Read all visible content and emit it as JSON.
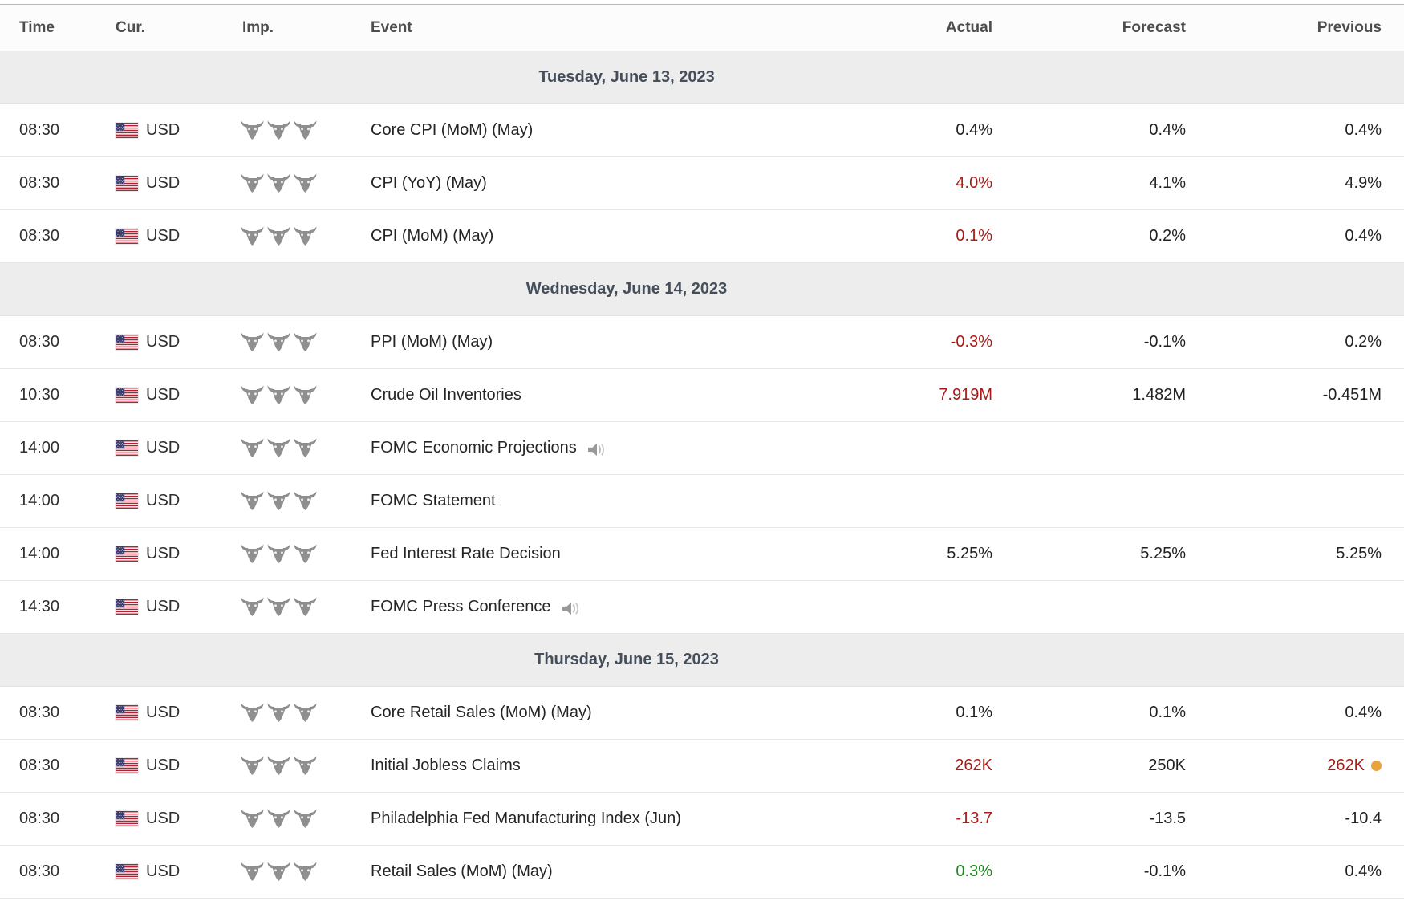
{
  "table": {
    "columns": [
      {
        "key": "time",
        "label": "Time"
      },
      {
        "key": "currency",
        "label": "Cur."
      },
      {
        "key": "importance",
        "label": "Imp."
      },
      {
        "key": "event",
        "label": "Event"
      },
      {
        "key": "actual",
        "label": "Actual"
      },
      {
        "key": "forecast",
        "label": "Forecast"
      },
      {
        "key": "previous",
        "label": "Previous"
      }
    ],
    "colors": {
      "negative": "#aa1b17",
      "positive": "#1a8a1a",
      "revision_dot": "#e8a33b"
    },
    "groups": [
      {
        "date": "Tuesday, June 13, 2023",
        "rows": [
          {
            "time": "08:30",
            "currency": "USD",
            "flag": "us-flag",
            "importance_bulls": 3,
            "event": "Core CPI (MoM) (May)",
            "has_speech_icon": false,
            "actual": {
              "text": "0.4%",
              "tone": "neutral"
            },
            "forecast": {
              "text": "0.4%",
              "tone": "neutral"
            },
            "previous": {
              "text": "0.4%",
              "tone": "neutral",
              "dot": false
            }
          },
          {
            "time": "08:30",
            "currency": "USD",
            "flag": "us-flag",
            "importance_bulls": 3,
            "event": "CPI (YoY) (May)",
            "has_speech_icon": false,
            "actual": {
              "text": "4.0%",
              "tone": "red"
            },
            "forecast": {
              "text": "4.1%",
              "tone": "neutral"
            },
            "previous": {
              "text": "4.9%",
              "tone": "neutral",
              "dot": false
            }
          },
          {
            "time": "08:30",
            "currency": "USD",
            "flag": "us-flag",
            "importance_bulls": 3,
            "event": "CPI (MoM) (May)",
            "has_speech_icon": false,
            "actual": {
              "text": "0.1%",
              "tone": "red"
            },
            "forecast": {
              "text": "0.2%",
              "tone": "neutral"
            },
            "previous": {
              "text": "0.4%",
              "tone": "neutral",
              "dot": false
            }
          }
        ]
      },
      {
        "date": "Wednesday, June 14, 2023",
        "rows": [
          {
            "time": "08:30",
            "currency": "USD",
            "flag": "us-flag",
            "importance_bulls": 3,
            "event": "PPI (MoM) (May)",
            "has_speech_icon": false,
            "actual": {
              "text": "-0.3%",
              "tone": "red"
            },
            "forecast": {
              "text": "-0.1%",
              "tone": "neutral"
            },
            "previous": {
              "text": "0.2%",
              "tone": "neutral",
              "dot": false
            }
          },
          {
            "time": "10:30",
            "currency": "USD",
            "flag": "us-flag",
            "importance_bulls": 3,
            "event": "Crude Oil Inventories",
            "has_speech_icon": false,
            "actual": {
              "text": "7.919M",
              "tone": "red"
            },
            "forecast": {
              "text": "1.482M",
              "tone": "neutral"
            },
            "previous": {
              "text": "-0.451M",
              "tone": "neutral",
              "dot": false
            }
          },
          {
            "time": "14:00",
            "currency": "USD",
            "flag": "us-flag",
            "importance_bulls": 3,
            "event": "FOMC Economic Projections",
            "has_speech_icon": true,
            "actual": {
              "text": "",
              "tone": "neutral"
            },
            "forecast": {
              "text": "",
              "tone": "neutral"
            },
            "previous": {
              "text": "",
              "tone": "neutral",
              "dot": false
            }
          },
          {
            "time": "14:00",
            "currency": "USD",
            "flag": "us-flag",
            "importance_bulls": 3,
            "event": "FOMC Statement",
            "has_speech_icon": false,
            "actual": {
              "text": "",
              "tone": "neutral"
            },
            "forecast": {
              "text": "",
              "tone": "neutral"
            },
            "previous": {
              "text": "",
              "tone": "neutral",
              "dot": false
            }
          },
          {
            "time": "14:00",
            "currency": "USD",
            "flag": "us-flag",
            "importance_bulls": 3,
            "event": "Fed Interest Rate Decision",
            "has_speech_icon": false,
            "actual": {
              "text": "5.25%",
              "tone": "neutral"
            },
            "forecast": {
              "text": "5.25%",
              "tone": "neutral"
            },
            "previous": {
              "text": "5.25%",
              "tone": "neutral",
              "dot": false
            }
          },
          {
            "time": "14:30",
            "currency": "USD",
            "flag": "us-flag",
            "importance_bulls": 3,
            "event": "FOMC Press Conference",
            "has_speech_icon": true,
            "actual": {
              "text": "",
              "tone": "neutral"
            },
            "forecast": {
              "text": "",
              "tone": "neutral"
            },
            "previous": {
              "text": "",
              "tone": "neutral",
              "dot": false
            }
          }
        ]
      },
      {
        "date": "Thursday, June 15, 2023",
        "rows": [
          {
            "time": "08:30",
            "currency": "USD",
            "flag": "us-flag",
            "importance_bulls": 3,
            "event": "Core Retail Sales (MoM) (May)",
            "has_speech_icon": false,
            "actual": {
              "text": "0.1%",
              "tone": "neutral"
            },
            "forecast": {
              "text": "0.1%",
              "tone": "neutral"
            },
            "previous": {
              "text": "0.4%",
              "tone": "neutral",
              "dot": false
            }
          },
          {
            "time": "08:30",
            "currency": "USD",
            "flag": "us-flag",
            "importance_bulls": 3,
            "event": "Initial Jobless Claims",
            "has_speech_icon": false,
            "actual": {
              "text": "262K",
              "tone": "red"
            },
            "forecast": {
              "text": "250K",
              "tone": "neutral"
            },
            "previous": {
              "text": "262K",
              "tone": "red",
              "dot": true
            }
          },
          {
            "time": "08:30",
            "currency": "USD",
            "flag": "us-flag",
            "importance_bulls": 3,
            "event": "Philadelphia Fed Manufacturing Index (Jun)",
            "has_speech_icon": false,
            "actual": {
              "text": "-13.7",
              "tone": "red"
            },
            "forecast": {
              "text": "-13.5",
              "tone": "neutral"
            },
            "previous": {
              "text": "-10.4",
              "tone": "neutral",
              "dot": false
            }
          },
          {
            "time": "08:30",
            "currency": "USD",
            "flag": "us-flag",
            "importance_bulls": 3,
            "event": "Retail Sales (MoM) (May)",
            "has_speech_icon": false,
            "actual": {
              "text": "0.3%",
              "tone": "green"
            },
            "forecast": {
              "text": "-0.1%",
              "tone": "neutral"
            },
            "previous": {
              "text": "0.4%",
              "tone": "neutral",
              "dot": false
            }
          }
        ]
      }
    ]
  }
}
